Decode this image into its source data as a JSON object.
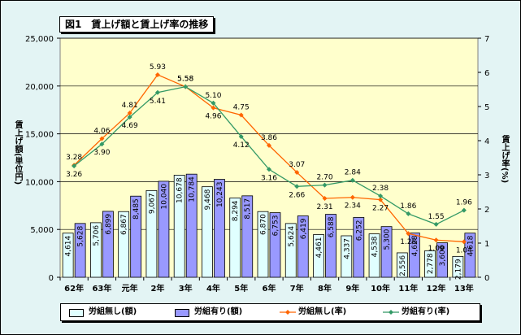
{
  "title": "図1　賃上げ額と賃上げ率の推移",
  "chart_data": {
    "type": "bar",
    "categories": [
      "62年",
      "63年",
      "元年",
      "2年",
      "3年",
      "4年",
      "5年",
      "6年",
      "7年",
      "8年",
      "9年",
      "10年",
      "11年",
      "12年",
      "13年"
    ],
    "series": [
      {
        "name": "労組無し(額)",
        "kind": "bar",
        "axis": "left",
        "color": "#e0ffff",
        "values": [
          4614,
          5706,
          6867,
          9067,
          10678,
          9468,
          8294,
          6870,
          5624,
          4461,
          4337,
          4538,
          2556,
          2778,
          2179
        ]
      },
      {
        "name": "労組有り(額)",
        "kind": "bar",
        "axis": "left",
        "color": "#9999ff",
        "values": [
          5628,
          6899,
          8485,
          10040,
          10784,
          10243,
          8517,
          6753,
          6419,
          6588,
          6252,
          5300,
          4628,
          3606,
          4618
        ]
      },
      {
        "name": "労組無し(率)",
        "kind": "line",
        "axis": "right",
        "color": "#ff6600",
        "values": [
          3.28,
          4.06,
          4.81,
          5.93,
          5.58,
          4.96,
          4.75,
          3.86,
          3.07,
          2.31,
          2.34,
          2.27,
          1.28,
          1.09,
          1.04
        ],
        "labels": [
          "3.28",
          "4.06",
          "4.81",
          "5.93",
          "5.58",
          "4.96",
          "4.75",
          "3.86",
          "3.07",
          "2.31",
          "2.34",
          "2.27",
          "1.28",
          "1.09",
          "1.04"
        ]
      },
      {
        "name": "労組有り(率)",
        "kind": "line",
        "axis": "right",
        "color": "#339966",
        "values": [
          3.26,
          3.9,
          4.69,
          5.41,
          5.58,
          5.1,
          4.12,
          3.16,
          2.66,
          2.7,
          2.84,
          2.38,
          1.86,
          1.55,
          1.96
        ],
        "labels": [
          "3.26",
          "3.90",
          "4.69",
          "5.41",
          "5.58",
          "5.10",
          "4.12",
          "3.16",
          "2.66",
          "2.70",
          "2.84",
          "2.38",
          "1.86",
          "1.55",
          "1.96"
        ]
      }
    ],
    "bar_labels": [
      [
        "4,614",
        "5,706",
        "6,867",
        "9,067",
        "10,678",
        "9,468",
        "8,294",
        "6,870",
        "5,624",
        "4,461",
        "4,337",
        "4,538",
        "2,556",
        "2,778",
        "2,179"
      ],
      [
        "5,628",
        "6,899",
        "8,485",
        "10,040",
        "10,784",
        "10,243",
        "8,517",
        "6,753",
        "6,419",
        "6,588",
        "6,252",
        "5,300",
        "4,628",
        "3,606",
        "4,618"
      ]
    ],
    "ylabel_left": "賃上げ額(単位円)",
    "ylabel_right": "賃上げ率(%)",
    "ylim_left": [
      0,
      25000
    ],
    "ylim_right": [
      0,
      7
    ],
    "yticks_left": [
      "0",
      "5,000",
      "10,000",
      "15,000",
      "20,000",
      "25,000"
    ],
    "yticks_right": [
      "0",
      "1",
      "2",
      "3",
      "4",
      "5",
      "6",
      "7"
    ],
    "plot_color": "#ffffcc",
    "grid": true,
    "legend_position": "bottom"
  }
}
